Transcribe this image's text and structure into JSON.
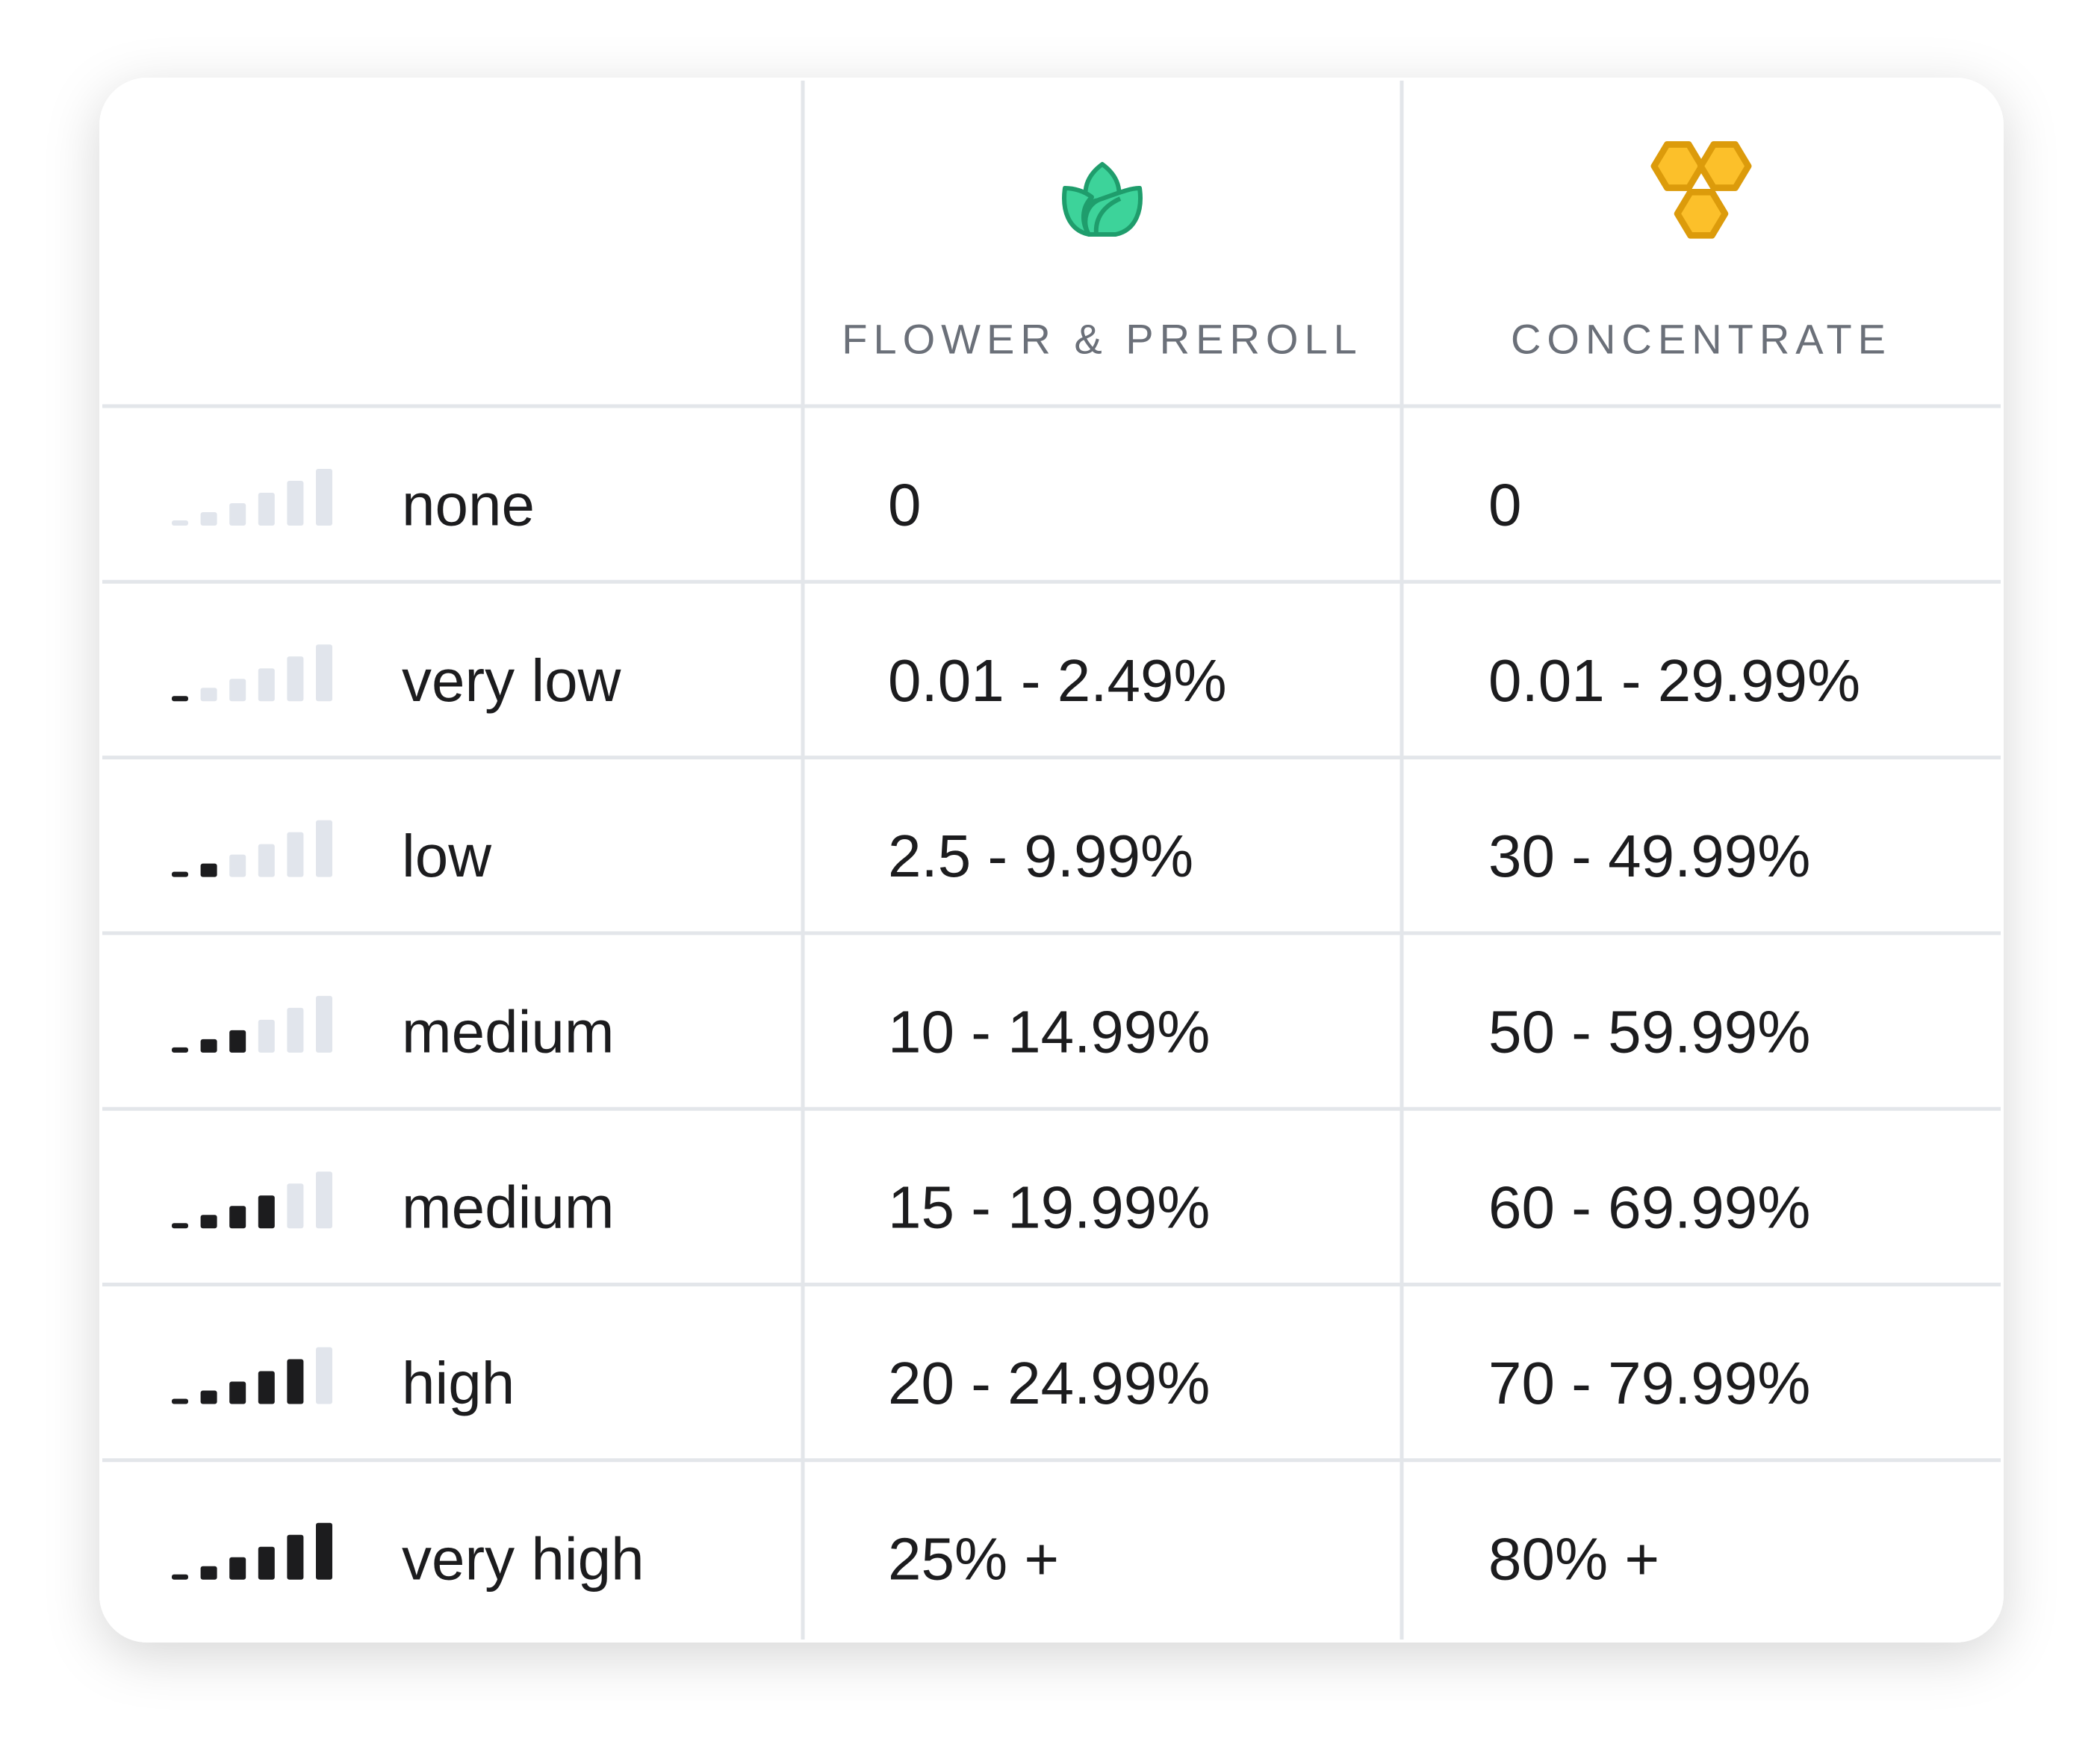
{
  "table": {
    "headers": [
      "FLOWER & PREROLL",
      "CONCENTRATE"
    ],
    "rows": [
      {
        "label": "none",
        "level": 0,
        "cells": [
          "0",
          "0"
        ]
      },
      {
        "label": "very low",
        "level": 1,
        "cells": [
          "0.01 - 2.49%",
          "0.01 - 29.99%"
        ]
      },
      {
        "label": "low",
        "level": 2,
        "cells": [
          "2.5 - 9.99%",
          "30 - 49.99%"
        ]
      },
      {
        "label": "medium",
        "level": 3,
        "cells": [
          "10 - 14.99%",
          "50 - 59.99%"
        ]
      },
      {
        "label": "medium",
        "level": 4,
        "cells": [
          "15 - 19.99%",
          "60 - 69.99%"
        ]
      },
      {
        "label": "high",
        "level": 5,
        "cells": [
          "20 - 24.99%",
          "70 - 79.99%"
        ]
      },
      {
        "label": "very high",
        "level": 6,
        "cells": [
          "25% +",
          "80% +"
        ]
      }
    ]
  }
}
